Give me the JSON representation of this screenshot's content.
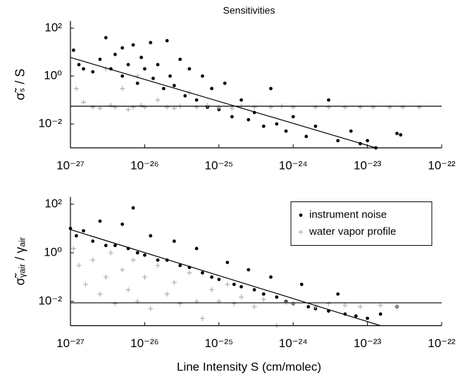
{
  "chart_data": [
    {
      "type": "scatter",
      "title": "Sensitivities",
      "ylabel": "σ̃ₛ / S",
      "log_x": true,
      "log_y": true,
      "xlim": [
        1e-27,
        1e-22
      ],
      "ylim": [
        0.001,
        200
      ],
      "xticks": [
        {
          "value": 1e-27,
          "label": "10⁻²⁷"
        },
        {
          "value": 1e-26,
          "label": "10⁻²⁶"
        },
        {
          "value": 1e-25,
          "label": "10⁻²⁵"
        },
        {
          "value": 1e-24,
          "label": "10⁻²⁴"
        },
        {
          "value": 1e-23,
          "label": "10⁻²³"
        },
        {
          "value": 1e-22,
          "label": "10⁻²²"
        }
      ],
      "yticks": [
        {
          "value": 0.01,
          "label": "10⁻²"
        },
        {
          "value": 1,
          "label": "10⁰"
        },
        {
          "value": 100,
          "label": "10²"
        }
      ],
      "series": [
        {
          "color": "#000000",
          "marker": "dot",
          "x": [
            1.1e-27,
            1.3e-27,
            1.5e-27,
            2e-27,
            2.5e-27,
            3e-27,
            3.5e-27,
            4e-27,
            5e-27,
            5e-27,
            6e-27,
            7e-27,
            8e-27,
            9e-27,
            1e-26,
            1.2e-26,
            1.3e-26,
            1.5e-26,
            1.8e-26,
            2e-26,
            2.2e-26,
            2.5e-26,
            3e-26,
            3.5e-26,
            4e-26,
            5e-26,
            6e-26,
            7e-26,
            8e-26,
            1e-25,
            1.2e-25,
            1.5e-25,
            2e-25,
            2.5e-25,
            3e-25,
            4e-25,
            5e-25,
            6e-25,
            8e-25,
            1e-24,
            1.5e-24,
            2e-24,
            3e-24,
            4e-24,
            6e-24,
            8e-24,
            1e-23,
            1.3e-23,
            2.5e-23,
            2.8e-23
          ],
          "values": [
            12,
            3,
            2,
            1.5,
            5,
            40,
            2,
            8,
            15,
            1,
            3,
            20,
            0.5,
            6,
            2,
            25,
            0.8,
            3,
            0.3,
            30,
            1,
            0.4,
            5,
            0.15,
            2,
            0.1,
            1,
            0.05,
            0.3,
            0.04,
            0.5,
            0.02,
            0.1,
            0.015,
            0.03,
            0.008,
            0.3,
            0.01,
            0.005,
            0.02,
            0.003,
            0.008,
            0.1,
            0.002,
            0.005,
            0.0015,
            0.002,
            0.001,
            0.004,
            0.0035
          ]
        },
        {
          "color": "#b4b4b4",
          "marker": "plus",
          "x": [
            1.2e-27,
            1.5e-27,
            2e-27,
            2.5e-27,
            3e-27,
            3.5e-27,
            4e-27,
            5e-27,
            6e-27,
            7e-27,
            8e-27,
            9e-27,
            1e-26,
            1.5e-26,
            2e-26,
            2.5e-26,
            3e-26,
            4e-26,
            5e-26,
            7e-26,
            1e-25,
            1.5e-25,
            2e-25,
            3e-25,
            5e-25,
            7e-25,
            1e-24,
            2e-24,
            3e-24,
            5e-24,
            8e-24,
            1.2e-23,
            2e-23,
            3e-23,
            5e-23
          ],
          "values": [
            0.3,
            0.08,
            0.05,
            0.045,
            2,
            0.06,
            0.05,
            0.3,
            0.04,
            0.05,
            1,
            0.06,
            0.05,
            0.1,
            0.05,
            0.045,
            0.055,
            0.2,
            0.05,
            0.06,
            0.05,
            0.045,
            0.055,
            0.05,
            0.05,
            0.055,
            0.05,
            0.05,
            0.05,
            0.05,
            0.05,
            0.05,
            0.05,
            0.05,
            0.05
          ]
        }
      ],
      "lines": [
        {
          "color": "#000000",
          "x": [
            1e-27,
            1.3e-23
          ],
          "values": [
            6,
            0.001
          ]
        },
        {
          "color": "#000000",
          "x": [
            1e-27,
            1e-22
          ],
          "values": [
            0.055,
            0.055
          ]
        }
      ]
    },
    {
      "type": "scatter",
      "xlabel": "Line Intensity S (cm/molec)",
      "ylabel": "σ̃ᵧₐᵢᵣ / γₐᵢᵣ",
      "log_x": true,
      "log_y": true,
      "legend": "upper right",
      "xlim": [
        1e-27,
        1e-22
      ],
      "ylim": [
        0.001,
        200
      ],
      "xticks": [
        {
          "value": 1e-27,
          "label": "10⁻²⁷"
        },
        {
          "value": 1e-26,
          "label": "10⁻²⁶"
        },
        {
          "value": 1e-25,
          "label": "10⁻²⁵"
        },
        {
          "value": 1e-24,
          "label": "10⁻²⁴"
        },
        {
          "value": 1e-23,
          "label": "10⁻²³"
        },
        {
          "value": 1e-22,
          "label": "10⁻²²"
        }
      ],
      "yticks": [
        {
          "value": 0.01,
          "label": "10⁻²"
        },
        {
          "value": 1,
          "label": "10⁰"
        },
        {
          "value": 100,
          "label": "10²"
        }
      ],
      "series": [
        {
          "name": "instrument noise",
          "color": "#000000",
          "marker": "dot",
          "x": [
            1e-27,
            1.2e-27,
            1.5e-27,
            2e-27,
            2.5e-27,
            3e-27,
            4e-27,
            5e-27,
            6e-27,
            7e-27,
            8e-27,
            1e-26,
            1.2e-26,
            1.5e-26,
            2e-26,
            2.5e-26,
            3e-26,
            4e-26,
            5e-26,
            6e-26,
            8e-26,
            1e-25,
            1.3e-25,
            1.6e-25,
            2e-25,
            2.5e-25,
            3e-25,
            4e-25,
            5e-25,
            6e-25,
            8e-25,
            1e-24,
            1.3e-24,
            1.6e-24,
            2e-24,
            3e-24,
            4e-24,
            5e-24,
            7e-24,
            1e-23,
            1.5e-23,
            2.5e-23
          ],
          "values": [
            10,
            5,
            8,
            3,
            20,
            2,
            2,
            15,
            1.5,
            70,
            1,
            0.8,
            5,
            0.5,
            0.5,
            3,
            0.3,
            0.25,
            1.5,
            0.15,
            0.1,
            0.08,
            0.4,
            0.05,
            0.04,
            0.2,
            0.03,
            0.02,
            0.1,
            0.015,
            0.01,
            0.008,
            0.05,
            0.006,
            0.005,
            0.004,
            0.02,
            0.003,
            0.0025,
            0.002,
            0.003,
            0.006
          ]
        },
        {
          "name": "water vapor profile",
          "color": "#b4b4b4",
          "marker": "plus",
          "x": [
            1.1e-27,
            1.3e-27,
            1.6e-27,
            2e-27,
            2.5e-27,
            3e-27,
            3.5e-27,
            4e-27,
            5e-27,
            6e-27,
            7e-27,
            8e-27,
            1e-26,
            1.2e-26,
            1.5e-26,
            2e-26,
            2.5e-26,
            3e-26,
            4e-26,
            5e-26,
            6e-26,
            8e-26,
            1e-25,
            1.3e-25,
            1.6e-25,
            2e-25,
            3e-25,
            4e-25,
            6e-25,
            8e-25,
            1e-24,
            2e-24,
            3e-24,
            5e-24,
            8e-24,
            1.5e-23,
            2.5e-23
          ],
          "values": [
            1.5,
            0.3,
            0.05,
            0.5,
            0.02,
            0.1,
            1,
            0.008,
            0.2,
            0.03,
            0.5,
            0.01,
            0.1,
            0.005,
            0.3,
            0.02,
            0.06,
            0.008,
            0.15,
            0.01,
            0.002,
            0.03,
            0.01,
            0.05,
            0.008,
            0.015,
            0.006,
            0.012,
            0.001,
            0.009,
            0.008,
            0.006,
            0.008,
            0.007,
            0.006,
            0.007,
            0.006
          ]
        }
      ],
      "lines": [
        {
          "color": "#000000",
          "x": [
            1e-27,
            1.5e-23
          ],
          "values": [
            9,
            0.001
          ]
        },
        {
          "color": "#000000",
          "x": [
            1e-27,
            1e-22
          ],
          "values": [
            0.0087,
            0.0087
          ]
        }
      ]
    }
  ]
}
